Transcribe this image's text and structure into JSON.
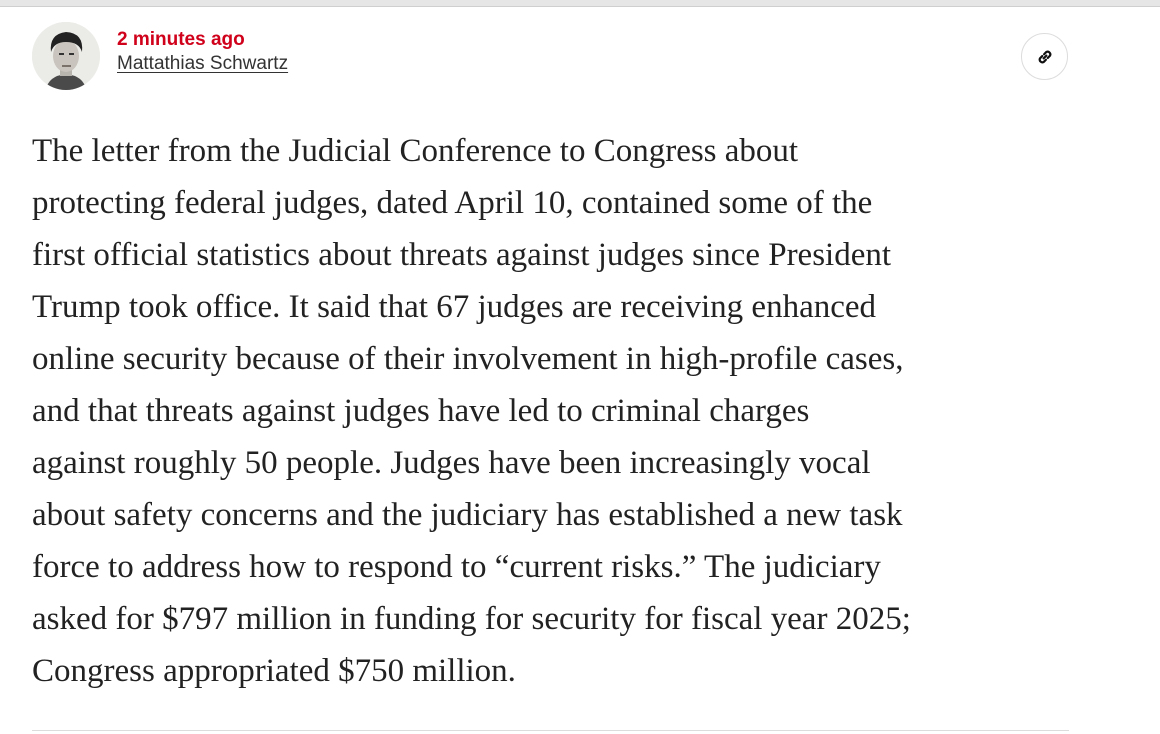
{
  "post": {
    "timestamp": "2 minutes ago",
    "author": "Mattathias Schwartz",
    "accent_color": "#d0021b",
    "link_icon": "link-icon",
    "body_lines": [
      "The letter from the Judicial Conference to Congress about",
      "protecting federal judges, dated April 10, contained some of the",
      "first official statistics about threats against judges since President",
      "Trump took office. It said that 67 judges are receiving enhanced",
      "online security because of their involvement in high-profile cases,",
      "and that threats against judges have led to criminal charges",
      "against roughly 50 people. Judges have been increasingly vocal",
      "about safety concerns and the judiciary has established a new task",
      "force to address how to respond to “current risks.” The judiciary",
      "asked for $797 million in funding for security for fiscal year 2025;",
      "Congress appropriated $750 million."
    ]
  }
}
